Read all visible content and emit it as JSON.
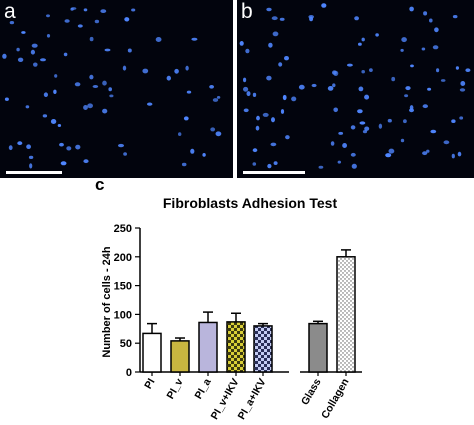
{
  "panels": {
    "a": {
      "label": "a"
    },
    "b": {
      "label": "b"
    },
    "c": {
      "label": "c"
    }
  },
  "colors": {
    "micrograph_bg": "#02040d",
    "nucleus": "#4f86ff",
    "pi": "#ffffff",
    "pi_v": "#c9b640",
    "pi_a": "#b9b5dc",
    "pi_v_ikv": "#d8ce37",
    "pi_a_ikv": "#b9c2ee",
    "glass": "#8b8b8b",
    "collagen": "#ffffff"
  },
  "chart_data": {
    "type": "bar",
    "title": "Fibroblasts Adhesion Test",
    "ylabel": "Number of cells - 24h",
    "xlabel": "",
    "ylim": [
      0,
      250
    ],
    "yticks": [
      0,
      50,
      100,
      150,
      200,
      250
    ],
    "categories": [
      "PI",
      "PI_v",
      "PI_a",
      "PI_v+IKV",
      "PI_a+IKV",
      "Glass",
      "Collagen"
    ],
    "values": [
      67,
      54,
      86,
      87,
      80,
      84,
      200
    ],
    "errors": [
      17,
      5,
      18,
      15,
      4,
      4,
      12
    ],
    "fills": [
      "white",
      "olive",
      "lavender",
      "checker-yellow",
      "checker-blue",
      "gray",
      "dotted"
    ],
    "legend": "none",
    "grid": false
  }
}
